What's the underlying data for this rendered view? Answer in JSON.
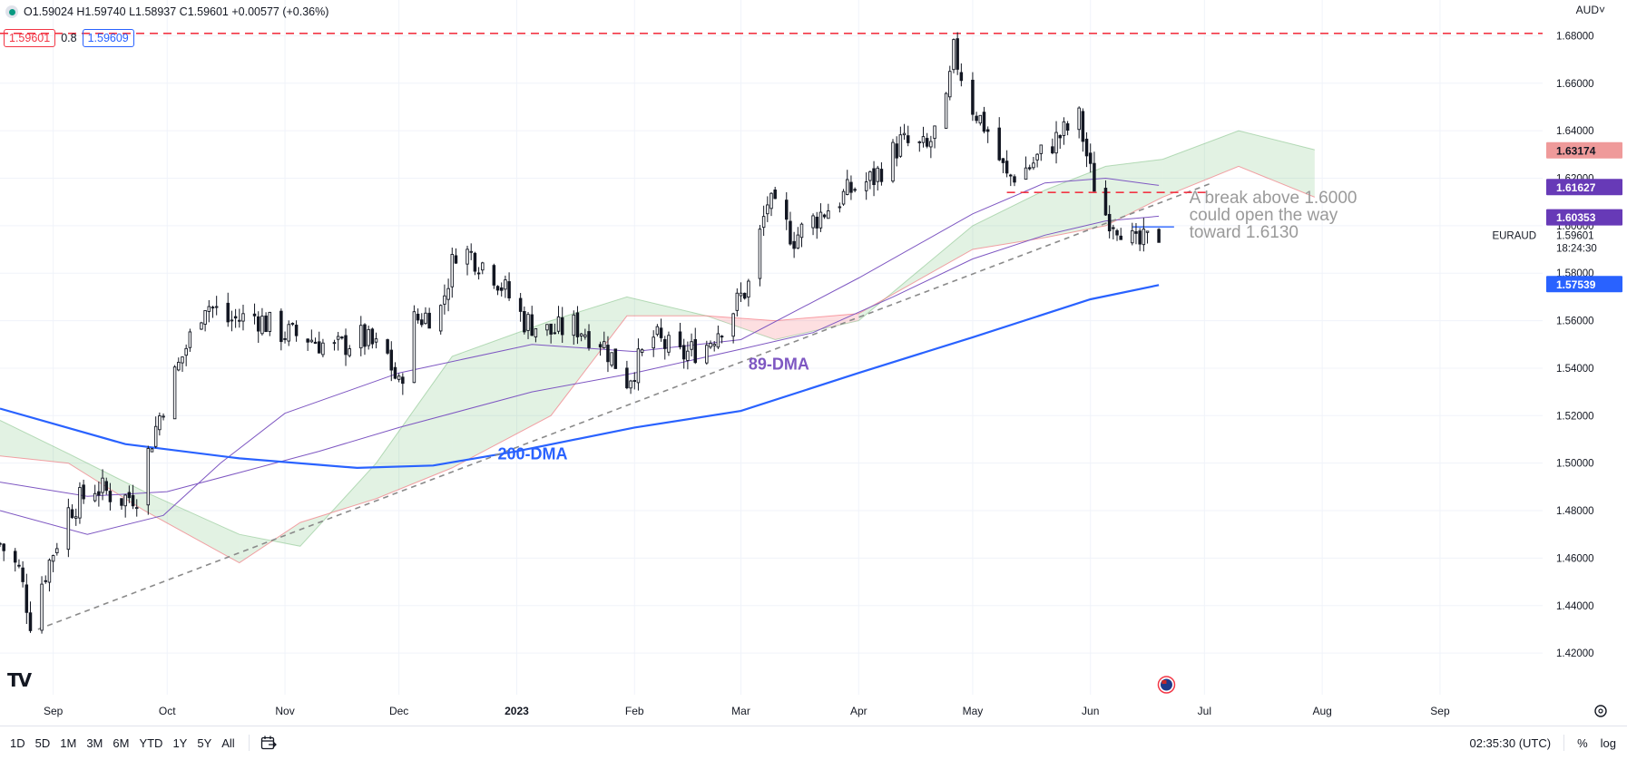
{
  "header": {
    "ohlc": "O1.59024 H1.59740 L1.58937 C1.59601 +0.00577 (+0.36%)",
    "bid": "1.59601",
    "spread": "0.8",
    "ask": "1.59609",
    "currency": "AUD˅"
  },
  "chart_data": {
    "type": "candlestick",
    "symbol": "EURAUD",
    "price_range": [
      1.404,
      1.692
    ],
    "date_range": [
      "2022-08-18",
      "2023-09-28"
    ],
    "x_tick_labels": [
      {
        "date": "2022-09-01",
        "label": "Sep"
      },
      {
        "date": "2022-10-01",
        "label": "Oct"
      },
      {
        "date": "2022-11-01",
        "label": "Nov"
      },
      {
        "date": "2022-12-01",
        "label": "Dec"
      },
      {
        "date": "2023-01-01",
        "label": "2023"
      },
      {
        "date": "2023-02-01",
        "label": "Feb"
      },
      {
        "date": "2023-03-01",
        "label": "Mar"
      },
      {
        "date": "2023-04-01",
        "label": "Apr"
      },
      {
        "date": "2023-05-01",
        "label": "May"
      },
      {
        "date": "2023-06-01",
        "label": "Jun"
      },
      {
        "date": "2023-07-01",
        "label": "Jul"
      },
      {
        "date": "2023-08-01",
        "label": "Aug"
      },
      {
        "date": "2023-09-01",
        "label": "Sep"
      }
    ],
    "y_tick_labels": [
      "1.68000",
      "1.66000",
      "1.64000",
      "1.62000",
      "1.60000",
      "1.58000",
      "1.56000",
      "1.54000",
      "1.52000",
      "1.50000",
      "1.48000",
      "1.46000",
      "1.44000",
      "1.42000"
    ],
    "close_path": [
      [
        "2022-08-18",
        1.466
      ],
      [
        "2022-08-23",
        1.455
      ],
      [
        "2022-08-26",
        1.434
      ],
      [
        "2022-08-29",
        1.45
      ],
      [
        "2022-09-05",
        1.48
      ],
      [
        "2022-09-12",
        1.49
      ],
      [
        "2022-09-19",
        1.485
      ],
      [
        "2022-09-23",
        1.487
      ],
      [
        "2022-09-27",
        1.51
      ],
      [
        "2022-09-30",
        1.525
      ],
      [
        "2022-10-05",
        1.545
      ],
      [
        "2022-10-11",
        1.568
      ],
      [
        "2022-10-17",
        1.56
      ],
      [
        "2022-10-24",
        1.562
      ],
      [
        "2022-10-31",
        1.555
      ],
      [
        "2022-11-07",
        1.553
      ],
      [
        "2022-11-14",
        1.548
      ],
      [
        "2022-11-21",
        1.553
      ],
      [
        "2022-11-28",
        1.545
      ],
      [
        "2022-12-01",
        1.532
      ],
      [
        "2022-12-05",
        1.56
      ],
      [
        "2022-12-12",
        1.565
      ],
      [
        "2022-12-16",
        1.59
      ],
      [
        "2022-12-20",
        1.588
      ],
      [
        "2022-12-26",
        1.58
      ],
      [
        "2023-01-03",
        1.56
      ],
      [
        "2023-01-10",
        1.555
      ],
      [
        "2023-01-16",
        1.558
      ],
      [
        "2023-01-23",
        1.552
      ],
      [
        "2023-01-30",
        1.535
      ],
      [
        "2023-02-06",
        1.553
      ],
      [
        "2023-02-13",
        1.545
      ],
      [
        "2023-02-20",
        1.55
      ],
      [
        "2023-02-27",
        1.565
      ],
      [
        "2023-03-03",
        1.575
      ],
      [
        "2023-03-08",
        1.61
      ],
      [
        "2023-03-15",
        1.595
      ],
      [
        "2023-03-22",
        1.605
      ],
      [
        "2023-03-30",
        1.615
      ],
      [
        "2023-04-05",
        1.62
      ],
      [
        "2023-04-12",
        1.635
      ],
      [
        "2023-04-19",
        1.632
      ],
      [
        "2023-04-24",
        1.65
      ],
      [
        "2023-04-26",
        1.673
      ],
      [
        "2023-05-01",
        1.65
      ],
      [
        "2023-05-05",
        1.64
      ],
      [
        "2023-05-10",
        1.62
      ],
      [
        "2023-05-16",
        1.625
      ],
      [
        "2023-05-22",
        1.635
      ],
      [
        "2023-05-29",
        1.645
      ],
      [
        "2023-06-01",
        1.622
      ],
      [
        "2023-06-05",
        1.605
      ],
      [
        "2023-06-09",
        1.6
      ],
      [
        "2023-06-13",
        1.591
      ],
      [
        "2023-06-19",
        1.596
      ]
    ],
    "ma_89": {
      "name": "89-DMA",
      "color": "#7e57c2",
      "points": [
        [
          "2022-08-18",
          1.492
        ],
        [
          "2022-09-10",
          1.486
        ],
        [
          "2022-10-01",
          1.488
        ],
        [
          "2022-10-20",
          1.496
        ],
        [
          "2022-11-10",
          1.505
        ],
        [
          "2022-12-01",
          1.515
        ],
        [
          "2023-01-05",
          1.53
        ],
        [
          "2023-02-01",
          1.538
        ],
        [
          "2023-03-01",
          1.548
        ],
        [
          "2023-03-20",
          1.555
        ],
        [
          "2023-04-10",
          1.57
        ],
        [
          "2023-05-01",
          1.586
        ],
        [
          "2023-05-20",
          1.596
        ],
        [
          "2023-06-05",
          1.602
        ],
        [
          "2023-06-19",
          1.604
        ]
      ]
    },
    "ma_55_upper": {
      "color": "#7e57c2",
      "points": [
        [
          "2022-08-18",
          1.48
        ],
        [
          "2022-09-10",
          1.47
        ],
        [
          "2022-09-30",
          1.478
        ],
        [
          "2022-10-15",
          1.5
        ],
        [
          "2022-11-01",
          1.521
        ],
        [
          "2022-12-01",
          1.538
        ],
        [
          "2023-01-05",
          1.55
        ],
        [
          "2023-02-01",
          1.547
        ],
        [
          "2023-03-01",
          1.552
        ],
        [
          "2023-04-01",
          1.578
        ],
        [
          "2023-05-01",
          1.605
        ],
        [
          "2023-05-20",
          1.618
        ],
        [
          "2023-06-05",
          1.62
        ],
        [
          "2023-06-19",
          1.617
        ]
      ]
    },
    "ma_200": {
      "name": "200-DMA",
      "color": "#2962ff",
      "points": [
        [
          "2022-08-18",
          1.523
        ],
        [
          "2022-09-20",
          1.508
        ],
        [
          "2022-10-20",
          1.502
        ],
        [
          "2022-11-20",
          1.498
        ],
        [
          "2022-12-10",
          1.499
        ],
        [
          "2023-01-01",
          1.505
        ],
        [
          "2023-02-01",
          1.515
        ],
        [
          "2023-03-01",
          1.522
        ],
        [
          "2023-04-01",
          1.538
        ],
        [
          "2023-05-01",
          1.553
        ],
        [
          "2023-06-01",
          1.569
        ],
        [
          "2023-06-19",
          1.575
        ]
      ]
    },
    "ichimoku_cloud": {
      "span_a": [
        [
          "2022-08-18",
          1.518
        ],
        [
          "2022-09-05",
          1.504
        ],
        [
          "2022-09-25",
          1.488
        ],
        [
          "2022-10-20",
          1.47
        ],
        [
          "2022-11-05",
          1.465
        ],
        [
          "2022-11-25",
          1.5
        ],
        [
          "2022-12-15",
          1.545
        ],
        [
          "2023-01-10",
          1.56
        ],
        [
          "2023-01-30",
          1.57
        ],
        [
          "2023-02-20",
          1.562
        ],
        [
          "2023-03-10",
          1.552
        ],
        [
          "2023-04-01",
          1.56
        ],
        [
          "2023-05-01",
          1.6
        ],
        [
          "2023-05-20",
          1.615
        ],
        [
          "2023-06-05",
          1.625
        ],
        [
          "2023-06-20",
          1.628
        ],
        [
          "2023-07-10",
          1.64
        ],
        [
          "2023-07-30",
          1.632
        ]
      ],
      "span_b": [
        [
          "2022-08-18",
          1.503
        ],
        [
          "2022-09-05",
          1.5
        ],
        [
          "2022-09-25",
          1.48
        ],
        [
          "2022-10-20",
          1.458
        ],
        [
          "2022-11-05",
          1.475
        ],
        [
          "2022-11-25",
          1.485
        ],
        [
          "2022-12-15",
          1.498
        ],
        [
          "2023-01-10",
          1.52
        ],
        [
          "2023-01-30",
          1.562
        ],
        [
          "2023-02-20",
          1.562
        ],
        [
          "2023-03-10",
          1.56
        ],
        [
          "2023-04-01",
          1.563
        ],
        [
          "2023-05-01",
          1.59
        ],
        [
          "2023-05-20",
          1.595
        ],
        [
          "2023-06-05",
          1.6
        ],
        [
          "2023-06-20",
          1.612
        ],
        [
          "2023-07-10",
          1.625
        ],
        [
          "2023-07-30",
          1.612
        ]
      ]
    },
    "trendline": {
      "from": [
        "2022-08-28",
        1.43
      ],
      "to": [
        "2023-07-03",
        1.618
      ]
    },
    "resistance_line": {
      "price": 1.681,
      "color": "#f23645"
    },
    "support_segment": {
      "from": "2023-05-10",
      "to": "2023-07-02",
      "price": 1.614,
      "color": "#f23645"
    },
    "blue_segment": {
      "from": "2023-06-12",
      "to": "2023-06-23",
      "price": 1.5995,
      "color": "#2962ff"
    },
    "price_badges": [
      {
        "value": "1.63174",
        "price": 1.63174,
        "bg": "#ef9a9a",
        "fg": "#131722"
      },
      {
        "value": "1.61627",
        "price": 1.61627,
        "bg": "#673ab7",
        "fg": "#ffffff"
      },
      {
        "value": "1.60353",
        "price": 1.60353,
        "bg": "#673ab7",
        "fg": "#ffffff"
      },
      {
        "value": "1.57539",
        "price": 1.57539,
        "bg": "#2962ff",
        "fg": "#ffffff"
      }
    ],
    "last_price": {
      "label": "EURAUD",
      "value": "1.59601",
      "countdown": "18:24:30",
      "price": 1.59601
    },
    "annotations": {
      "breakout_text": [
        "A break above 1.6000",
        "could open the way",
        "toward 1.6130"
      ],
      "ma89_label": "89-DMA",
      "ma200_label": "200-DMA"
    }
  },
  "toolbar": {
    "ranges": [
      "1D",
      "5D",
      "1M",
      "3M",
      "6M",
      "YTD",
      "1Y",
      "5Y",
      "All"
    ],
    "time": "02:35:30 (UTC)",
    "percent": "%",
    "log": "log"
  },
  "logo": "TV",
  "icons": {
    "goto_date": "calendar-goto-icon",
    "settings": "gear-icon",
    "event": "flag-au-icon"
  }
}
